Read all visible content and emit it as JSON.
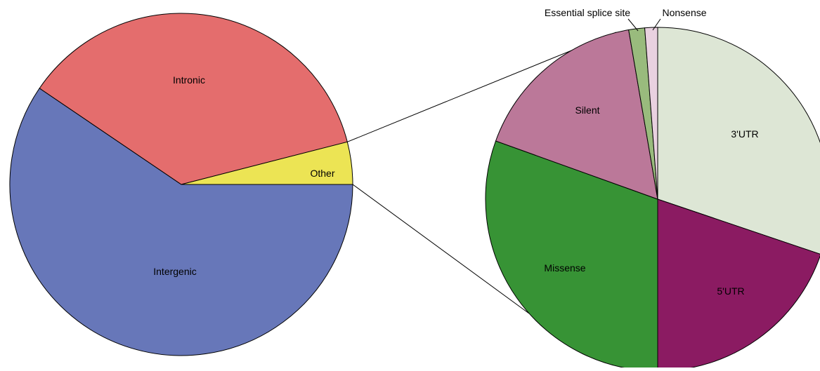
{
  "chart_data": [
    {
      "type": "pie",
      "title": "",
      "slices": [
        {
          "label": "Intergenic",
          "value": 59.5,
          "color": "#6777b9"
        },
        {
          "label": "Intronic",
          "value": 36.5,
          "color": "#e46d6d"
        },
        {
          "label": "Other",
          "value": 4.0,
          "color": "#ece454"
        }
      ]
    },
    {
      "type": "pie",
      "title": "",
      "slices": [
        {
          "label": "3'UTR",
          "value": 30.2,
          "color": "#dde6d5"
        },
        {
          "label": "5'UTR",
          "value": 19.8,
          "color": "#8b1b62"
        },
        {
          "label": "Missense",
          "value": 30.5,
          "color": "#379335"
        },
        {
          "label": "Silent",
          "value": 16.8,
          "color": "#bb7899"
        },
        {
          "label": "Essential splice site",
          "value": 1.5,
          "color": "#99bb7d"
        },
        {
          "label": "Nonsense",
          "value": 1.2,
          "color": "#e9d1e0"
        }
      ],
      "exploded_from": "Other"
    }
  ]
}
